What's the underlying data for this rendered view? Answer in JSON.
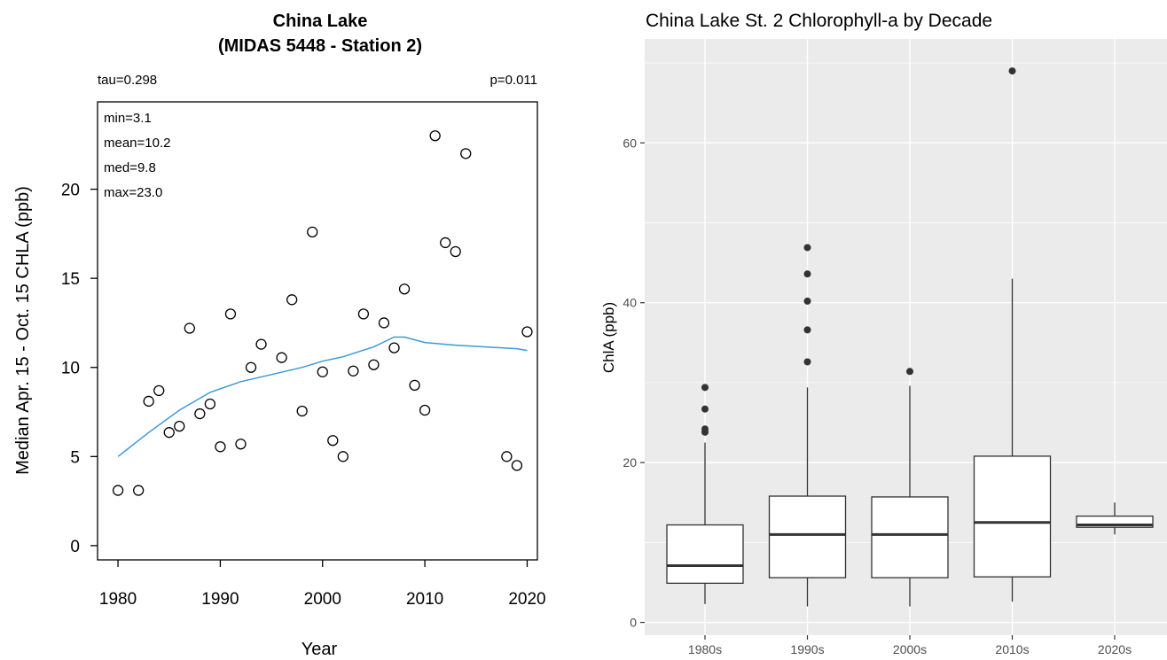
{
  "chart_data": [
    {
      "type": "scatter",
      "title": "China Lake",
      "subtitle": "(MIDAS 5448 - Station 2)",
      "xlabel": "Year",
      "ylabel": "Median Apr. 15 - Oct. 15 CHLA (ppb)",
      "xlim": [
        1978,
        2021
      ],
      "ylim": [
        -0.8,
        24.9
      ],
      "xticks": [
        1980,
        1990,
        2000,
        2010,
        2020
      ],
      "yticks": [
        0,
        5,
        10,
        15,
        20
      ],
      "stats_top_left": "tau=0.298",
      "stats_top_right": "p=0.011",
      "stats_box": [
        "min=3.1",
        "mean=10.2",
        "med=9.8",
        "max=23.0"
      ],
      "points": [
        {
          "x": 1980,
          "y": 3.1
        },
        {
          "x": 1982,
          "y": 3.1
        },
        {
          "x": 1983,
          "y": 8.1
        },
        {
          "x": 1984,
          "y": 8.7
        },
        {
          "x": 1985,
          "y": 6.35
        },
        {
          "x": 1986,
          "y": 6.7
        },
        {
          "x": 1987,
          "y": 12.2
        },
        {
          "x": 1988,
          "y": 7.4
        },
        {
          "x": 1989,
          "y": 7.95
        },
        {
          "x": 1990,
          "y": 5.55
        },
        {
          "x": 1991,
          "y": 13.0
        },
        {
          "x": 1992,
          "y": 5.7
        },
        {
          "x": 1993,
          "y": 10.0
        },
        {
          "x": 1994,
          "y": 11.3
        },
        {
          "x": 1996,
          "y": 10.55
        },
        {
          "x": 1997,
          "y": 13.8
        },
        {
          "x": 1998,
          "y": 7.55
        },
        {
          "x": 1999,
          "y": 17.6
        },
        {
          "x": 2000,
          "y": 9.75
        },
        {
          "x": 2001,
          "y": 5.9
        },
        {
          "x": 2002,
          "y": 5.0
        },
        {
          "x": 2003,
          "y": 9.8
        },
        {
          "x": 2004,
          "y": 13.0
        },
        {
          "x": 2005,
          "y": 10.15
        },
        {
          "x": 2006,
          "y": 12.5
        },
        {
          "x": 2007,
          "y": 11.1
        },
        {
          "x": 2008,
          "y": 14.4
        },
        {
          "x": 2009,
          "y": 9.0
        },
        {
          "x": 2010,
          "y": 7.6
        },
        {
          "x": 2011,
          "y": 23.0
        },
        {
          "x": 2012,
          "y": 17.0
        },
        {
          "x": 2013,
          "y": 16.5
        },
        {
          "x": 2014,
          "y": 22.0
        },
        {
          "x": 2018,
          "y": 5.0
        },
        {
          "x": 2019,
          "y": 4.5
        },
        {
          "x": 2020,
          "y": 12.0
        }
      ],
      "trend_line": {
        "color": "#3a9ad9",
        "points": [
          [
            1980,
            5.0
          ],
          [
            1983,
            6.35
          ],
          [
            1986,
            7.6
          ],
          [
            1989,
            8.6
          ],
          [
            1992,
            9.2
          ],
          [
            1995,
            9.6
          ],
          [
            1998,
            10.0
          ],
          [
            2000,
            10.35
          ],
          [
            2002,
            10.6
          ],
          [
            2005,
            11.15
          ],
          [
            2007,
            11.7
          ],
          [
            2008,
            11.7
          ],
          [
            2010,
            11.4
          ],
          [
            2013,
            11.25
          ],
          [
            2016,
            11.15
          ],
          [
            2019,
            11.05
          ],
          [
            2020,
            10.95
          ]
        ]
      }
    },
    {
      "type": "box",
      "title": "China Lake St. 2 Chlorophyll-a by Decade",
      "xlabel": "",
      "ylabel": "ChlA (ppb)",
      "ylim": [
        -1.6,
        73
      ],
      "yticks": [
        0,
        20,
        40,
        60
      ],
      "categories": [
        "1980s",
        "1990s",
        "2000s",
        "2010s",
        "2020s"
      ],
      "boxes": [
        {
          "category": "1980s",
          "whisker_low": 2.3,
          "q1": 4.9,
          "median": 7.1,
          "q3": 12.2,
          "whisker_high": 22.5,
          "outliers": [
            23.8,
            24.2,
            26.7,
            29.4
          ]
        },
        {
          "category": "1990s",
          "whisker_low": 2.0,
          "q1": 5.6,
          "median": 11.0,
          "q3": 15.8,
          "whisker_high": 29.4,
          "outliers": [
            32.6,
            36.6,
            40.2,
            43.6,
            46.9
          ]
        },
        {
          "category": "2000s",
          "whisker_low": 2.0,
          "q1": 5.6,
          "median": 11.0,
          "q3": 15.7,
          "whisker_high": 29.6,
          "outliers": [
            31.4
          ]
        },
        {
          "category": "2010s",
          "whisker_low": 2.6,
          "q1": 5.7,
          "median": 12.5,
          "q3": 20.8,
          "whisker_high": 43.0,
          "outliers": [
            69.0
          ]
        },
        {
          "category": "2020s",
          "whisker_low": 11.0,
          "q1": 11.9,
          "median": 12.2,
          "q3": 13.3,
          "whisker_high": 15.0,
          "outliers": []
        }
      ],
      "panel_background": "#ebebeb",
      "grid_color": "#ffffff"
    }
  ]
}
